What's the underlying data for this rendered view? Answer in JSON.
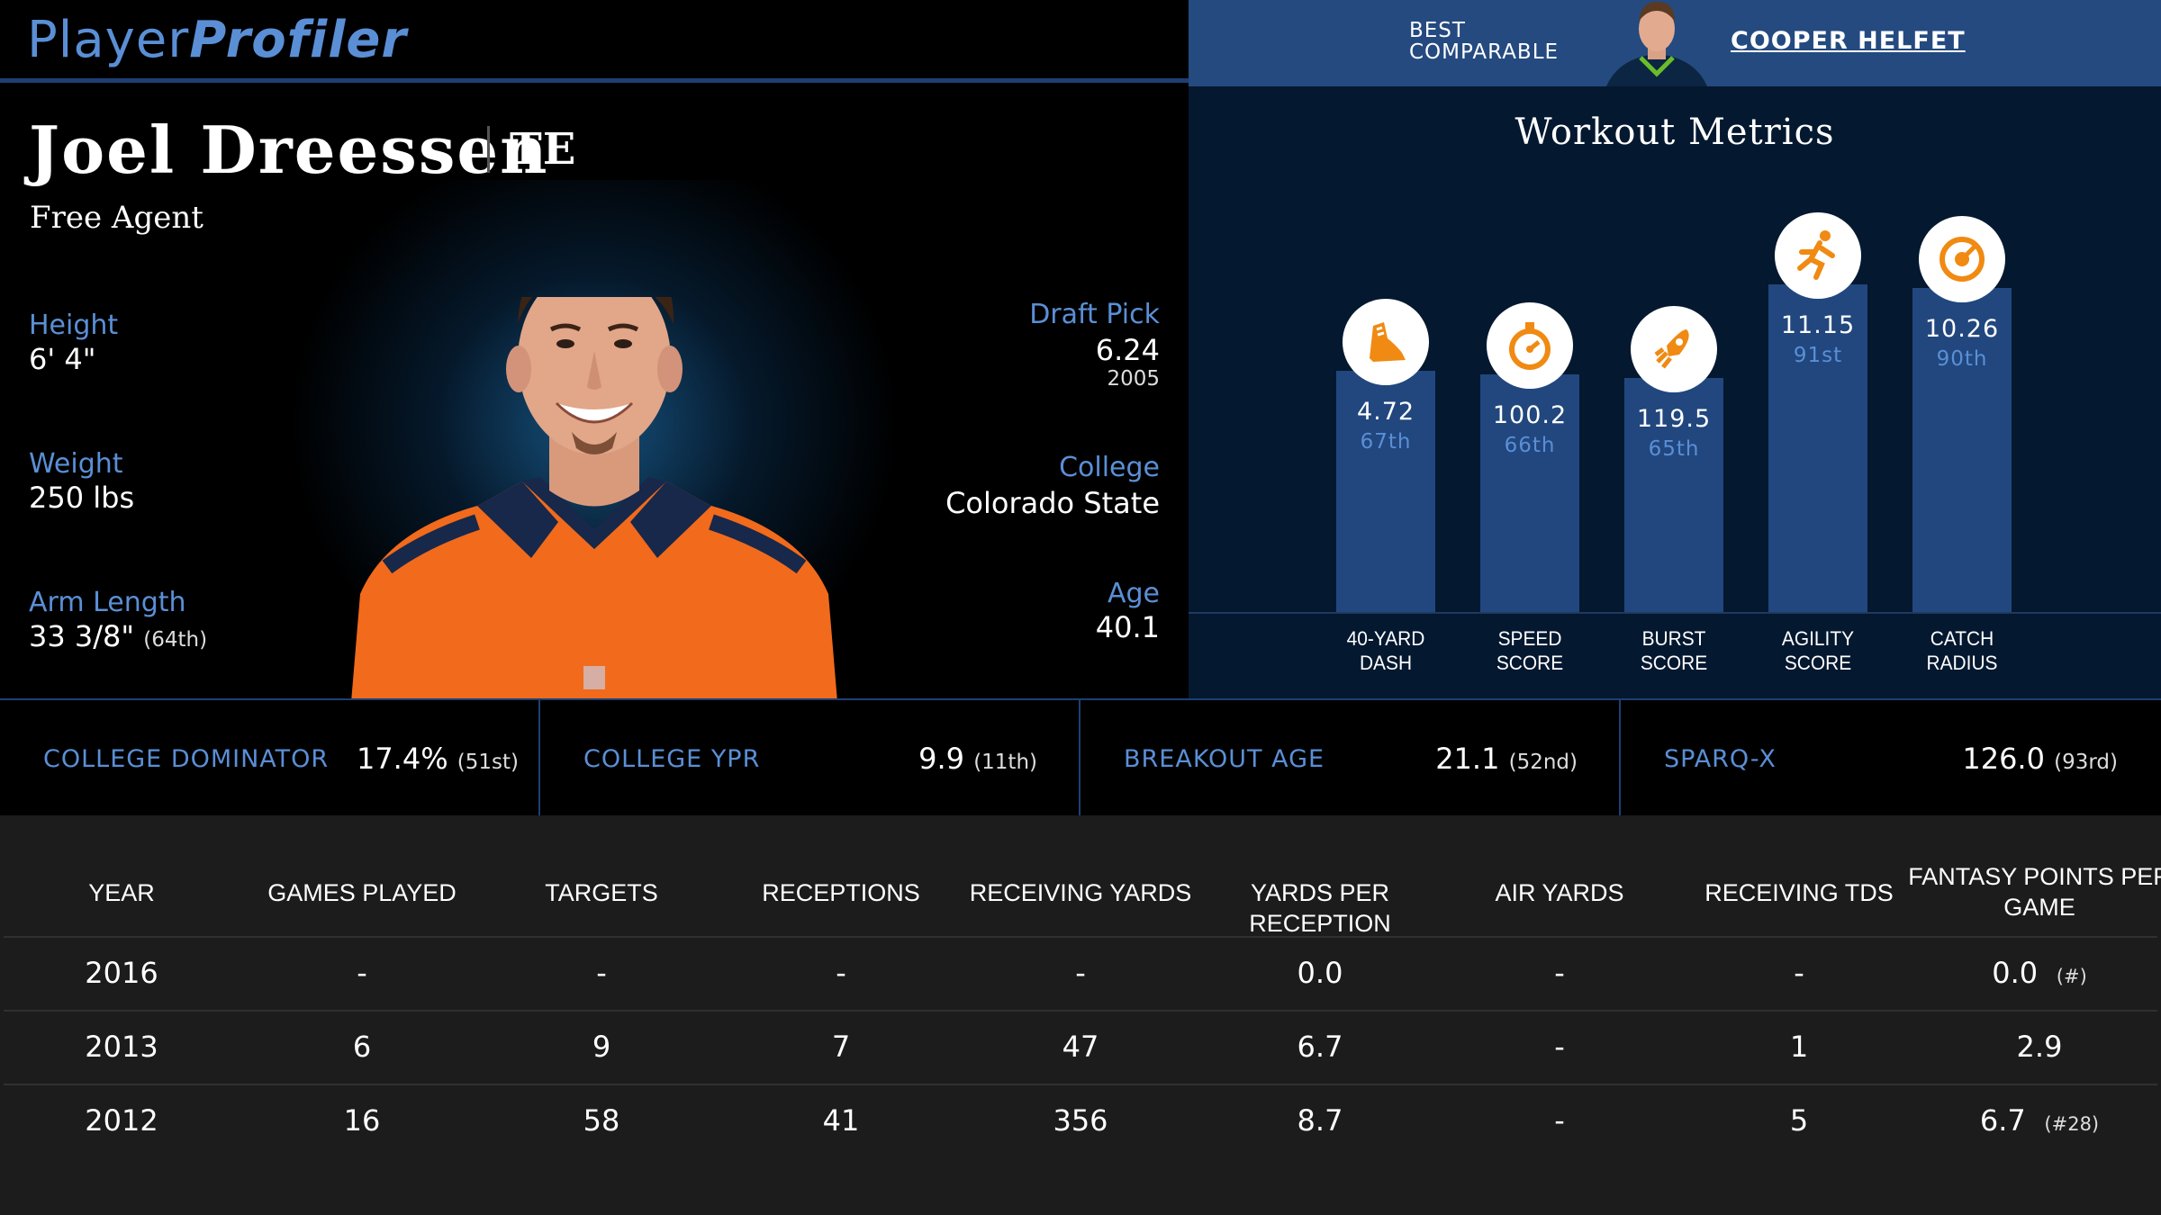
{
  "logo": {
    "part1": "Player",
    "part2": "Profiler"
  },
  "player": {
    "name": "Joel Dreessen",
    "position": "TE",
    "team": "Free Agent",
    "height_label": "Height",
    "height": "6' 4\"",
    "weight_label": "Weight",
    "weight": "250 lbs",
    "arm_label": "Arm Length",
    "arm": "33 3/8\"",
    "arm_rank": "(64th)",
    "draft_label": "Draft Pick",
    "draft": "6.24",
    "draft_year": "2005",
    "college_label": "College",
    "college": "Colorado State",
    "age_label": "Age",
    "age": "40.1"
  },
  "comparable": {
    "label_line1": "BEST",
    "label_line2": "COMPARABLE",
    "name": "COOPER HELFET"
  },
  "workout": {
    "title": "Workout Metrics",
    "metrics": [
      {
        "label1": "40-YARD",
        "label2": "DASH",
        "value": "4.72",
        "pct": "67th",
        "percentile": 67,
        "icon": "shoe-icon"
      },
      {
        "label1": "SPEED",
        "label2": "SCORE",
        "value": "100.2",
        "pct": "66th",
        "percentile": 66,
        "icon": "stopwatch-icon"
      },
      {
        "label1": "BURST",
        "label2": "SCORE",
        "value": "119.5",
        "pct": "65th",
        "percentile": 65,
        "icon": "rocket-icon"
      },
      {
        "label1": "AGILITY",
        "label2": "SCORE",
        "value": "11.15",
        "pct": "91st",
        "percentile": 91,
        "icon": "runner-icon"
      },
      {
        "label1": "CATCH",
        "label2": "RADIUS",
        "value": "10.26",
        "pct": "90th",
        "percentile": 90,
        "icon": "target-icon"
      }
    ]
  },
  "summary": [
    {
      "label": "COLLEGE DOMINATOR",
      "value": "17.4%",
      "rank": "(51st)"
    },
    {
      "label": "COLLEGE YPR",
      "value": "9.9",
      "rank": "(11th)"
    },
    {
      "label": "BREAKOUT AGE",
      "value": "21.1",
      "rank": "(52nd)"
    },
    {
      "label": "SPARQ-X",
      "value": "126.0",
      "rank": "(93rd)"
    }
  ],
  "table": {
    "headers": [
      "YEAR",
      "GAMES PLAYED",
      "TARGETS",
      "RECEPTIONS",
      "RECEIVING YARDS",
      "YARDS PER RECEPTION",
      "AIR YARDS",
      "RECEIVING TDS",
      "FANTASY POINTS PER",
      "GAME"
    ],
    "rows": [
      {
        "cells": [
          "2016",
          "-",
          "-",
          "-",
          "-",
          "0.0",
          "-",
          "-",
          "0.0"
        ],
        "fp_rank": "(#)"
      },
      {
        "cells": [
          "2013",
          "6",
          "9",
          "7",
          "47",
          "6.7",
          "-",
          "1",
          "2.9"
        ],
        "fp_rank": ""
      },
      {
        "cells": [
          "2012",
          "16",
          "58",
          "41",
          "356",
          "8.7",
          "-",
          "5",
          "6.7"
        ],
        "fp_rank": "(#28)"
      }
    ]
  },
  "colors": {
    "accent_blue": "#5a8fd6",
    "bar_blue": "#21477e",
    "header_blue": "#244a80",
    "icon_orange": "#f08a12"
  }
}
